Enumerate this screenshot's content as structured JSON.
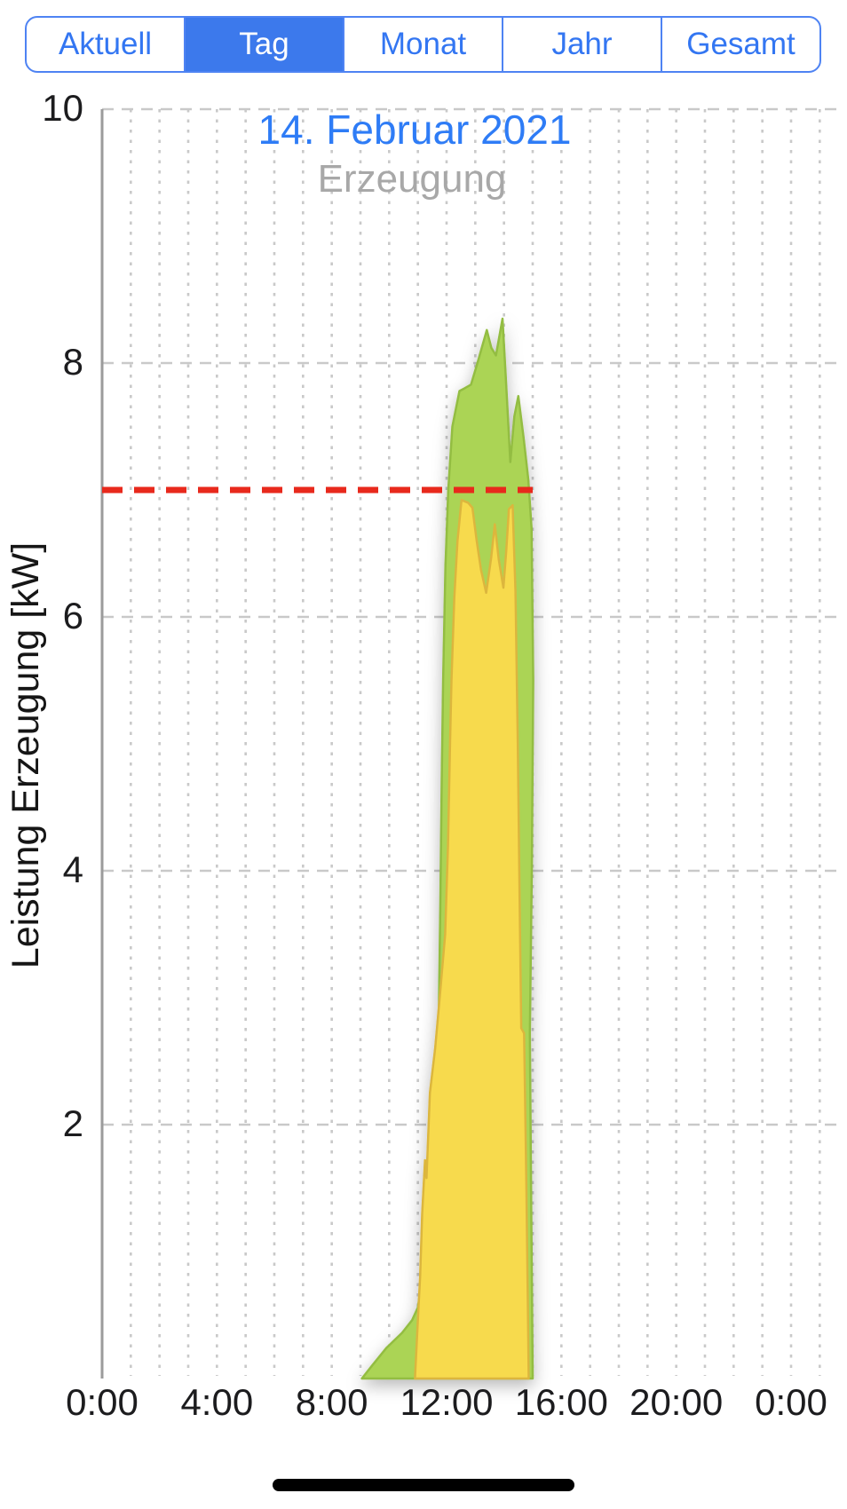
{
  "segmented_control": {
    "border_color": "#4e83f3",
    "text_color": "#3376f2",
    "selected_bg": "#3c79ec",
    "selected_text_color": "#ffffff",
    "items": [
      {
        "label": "Aktuell",
        "selected": false
      },
      {
        "label": "Tag",
        "selected": true
      },
      {
        "label": "Monat",
        "selected": false
      },
      {
        "label": "Jahr",
        "selected": false
      },
      {
        "label": "Gesamt",
        "selected": false
      }
    ]
  },
  "chart_data": {
    "type": "area",
    "title": "14. Februar 2021",
    "subtitle": "Erzeugung",
    "title_color": "#2e7cf6",
    "subtitle_color": "#a8a8a8",
    "ylabel": "Leistung Erzeugung [kW]",
    "xlabel": "",
    "xlim_hours": [
      0,
      24
    ],
    "ylim": [
      0,
      10
    ],
    "xticks": [
      {
        "hour": 0,
        "label": "0:00"
      },
      {
        "hour": 4,
        "label": "4:00"
      },
      {
        "hour": 8,
        "label": "8:00"
      },
      {
        "hour": 12,
        "label": "12:00"
      },
      {
        "hour": 16,
        "label": "16:00"
      },
      {
        "hour": 20,
        "label": "20:00"
      },
      {
        "hour": 24,
        "label": "0:00"
      }
    ],
    "yticks": [
      {
        "value": 2,
        "label": "2"
      },
      {
        "value": 4,
        "label": "4"
      },
      {
        "value": 6,
        "label": "6"
      },
      {
        "value": 8,
        "label": "8"
      },
      {
        "value": 10,
        "label": "10"
      }
    ],
    "grid": {
      "vertical_every_hours": 1,
      "horizontal_every": 2,
      "color": "#c9c9c9"
    },
    "axis_color": "#9b9b9b",
    "tick_label_color": "#1c1c1e",
    "reference_line": {
      "value_kw": 7.0,
      "start_hour": 0,
      "end_hour": 15,
      "color": "#e8291c",
      "style": "dashed"
    },
    "series": [
      {
        "name": "outer-green",
        "fill": "#abd455",
        "stroke": "#93bd42",
        "points_h_kw": [
          [
            9.05,
            0
          ],
          [
            9.4,
            0.1
          ],
          [
            9.9,
            0.24
          ],
          [
            10.45,
            0.36
          ],
          [
            10.8,
            0.46
          ],
          [
            11.0,
            0.56
          ],
          [
            11.1,
            0.72
          ],
          [
            11.3,
            0.93
          ],
          [
            11.38,
            1.05
          ],
          [
            11.45,
            1.62
          ],
          [
            11.53,
            1.5
          ],
          [
            11.65,
            1.95
          ],
          [
            11.72,
            2.7
          ],
          [
            11.78,
            3.7
          ],
          [
            11.83,
            4.7
          ],
          [
            11.88,
            5.5
          ],
          [
            11.96,
            6.4
          ],
          [
            12.06,
            7.0
          ],
          [
            12.2,
            7.5
          ],
          [
            12.45,
            7.78
          ],
          [
            12.62,
            7.8
          ],
          [
            12.85,
            7.83
          ],
          [
            13.1,
            8.02
          ],
          [
            13.4,
            8.26
          ],
          [
            13.56,
            8.12
          ],
          [
            13.72,
            8.06
          ],
          [
            13.95,
            8.35
          ],
          [
            14.06,
            7.9
          ],
          [
            14.22,
            7.22
          ],
          [
            14.36,
            7.58
          ],
          [
            14.5,
            7.74
          ],
          [
            14.68,
            7.42
          ],
          [
            14.85,
            7.08
          ],
          [
            14.96,
            6.7
          ],
          [
            15.02,
            5.5
          ],
          [
            14.97,
            4.0
          ],
          [
            14.9,
            2.72
          ],
          [
            14.95,
            1.3
          ],
          [
            15.0,
            0
          ]
        ]
      },
      {
        "name": "inner-yellow",
        "fill": "#f7da4d",
        "stroke": "#dcb63e",
        "points_h_kw": [
          [
            10.9,
            0
          ],
          [
            11.02,
            0.55
          ],
          [
            11.08,
            0.8
          ],
          [
            11.15,
            1.3
          ],
          [
            11.25,
            1.72
          ],
          [
            11.3,
            1.58
          ],
          [
            11.42,
            2.25
          ],
          [
            11.6,
            2.6
          ],
          [
            11.8,
            3.1
          ],
          [
            11.95,
            3.5
          ],
          [
            12.05,
            4.2
          ],
          [
            12.12,
            5.0
          ],
          [
            12.17,
            5.5
          ],
          [
            12.27,
            6.15
          ],
          [
            12.38,
            6.6
          ],
          [
            12.52,
            6.92
          ],
          [
            12.75,
            6.9
          ],
          [
            12.9,
            6.86
          ],
          [
            13.05,
            6.6
          ],
          [
            13.2,
            6.37
          ],
          [
            13.38,
            6.19
          ],
          [
            13.55,
            6.46
          ],
          [
            13.68,
            6.73
          ],
          [
            13.82,
            6.45
          ],
          [
            13.98,
            6.23
          ],
          [
            14.08,
            6.52
          ],
          [
            14.17,
            6.85
          ],
          [
            14.3,
            6.88
          ],
          [
            14.4,
            6.2
          ],
          [
            14.48,
            5.0
          ],
          [
            14.55,
            3.7
          ],
          [
            14.6,
            2.76
          ],
          [
            14.7,
            2.72
          ],
          [
            14.78,
            1.5
          ],
          [
            14.83,
            0.6
          ],
          [
            14.86,
            0
          ]
        ]
      }
    ]
  },
  "home_indicator": {
    "color": "#000000"
  }
}
